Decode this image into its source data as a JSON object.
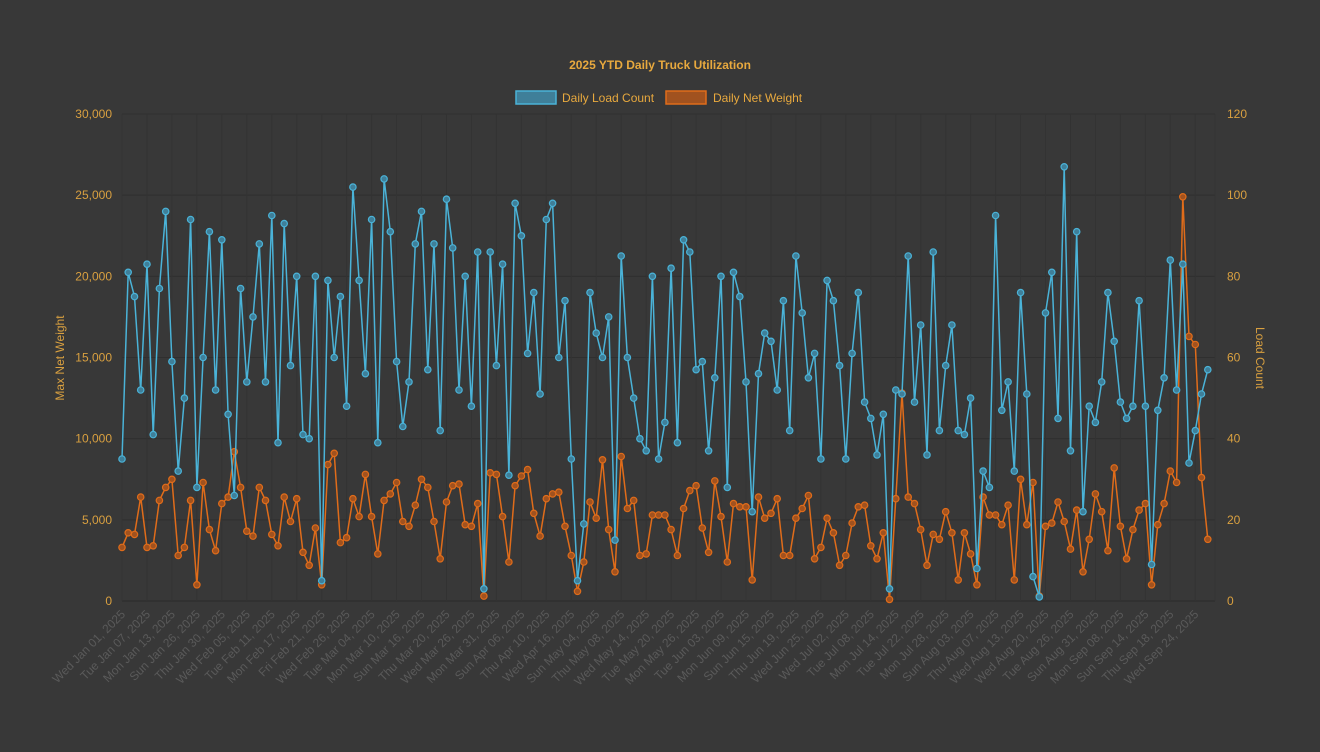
{
  "chart_data": {
    "type": "line",
    "title": "2025 YTD Daily Truck Utilization",
    "legend_position": "top",
    "grid": true,
    "y_left": {
      "label": "Max Net Weight",
      "range": [
        0,
        30000
      ],
      "ticks": [
        "0",
        "5,000",
        "10,000",
        "15,000",
        "20,000",
        "25,000",
        "30,000"
      ],
      "tick_values": [
        0,
        5000,
        10000,
        15000,
        20000,
        25000,
        30000
      ]
    },
    "y_right": {
      "label": "Load Count",
      "range": [
        0,
        120
      ],
      "ticks": [
        "0",
        "20",
        "40",
        "60",
        "80",
        "100",
        "120"
      ],
      "tick_values": [
        0,
        20,
        40,
        60,
        80,
        100,
        120
      ]
    },
    "x_tick_every": 4,
    "x_tick_labels": [
      "Wed Jan 01, 2025",
      "Tue Jan 07, 2025",
      "Mon Jan 13, 2025",
      "Sun Jan 26, 2025",
      "Thu Jan 30, 2025",
      "Wed Feb 05, 2025",
      "Tue Feb 11, 2025",
      "Mon Feb 17, 2025",
      "Fri Feb 21, 2025",
      "Wed Feb 26, 2025",
      "Tue Mar 04, 2025",
      "Mon Mar 10, 2025",
      "Sun Mar 16, 2025",
      "Thu Mar 20, 2025",
      "Wed Mar 26, 2025",
      "Mon Mar 31, 2025",
      "Sun Apr 06, 2025",
      "Thu Apr 10, 2025",
      "Wed Apr 16, 2025",
      "Sun May 04, 2025",
      "Thu May 08, 2025",
      "Wed May 14, 2025",
      "Tue May 20, 2025",
      "Mon May 26, 2025",
      "Tue Jun 03, 2025",
      "Mon Jun 09, 2025",
      "Sun Jun 15, 2025",
      "Thu Jun 19, 2025",
      "Wed Jun 25, 2025",
      "Wed Jul 02, 2025",
      "Tue Jul 08, 2025",
      "Mon Jul 14, 2025",
      "Tue Jul 22, 2025",
      "Mon Jul 28, 2025",
      "Sun Aug 03, 2025",
      "Thu Aug 07, 2025",
      "Wed Aug 13, 2025",
      "Wed Aug 20, 2025",
      "Tue Aug 26, 2025",
      "Sun Aug 31, 2025",
      "Mon Sep 08, 2025",
      "Sun Sep 14, 2025",
      "Thu Sep 18, 2025",
      "Wed Sep 24, 2025"
    ],
    "series": [
      {
        "name": "Daily Load Count",
        "axis": "right",
        "color": "#4ab3d8",
        "fill": "#3f7f99",
        "values": [
          35,
          81,
          75,
          52,
          83,
          41,
          77,
          96,
          59,
          32,
          50,
          94,
          28,
          60,
          91,
          52,
          89,
          46,
          26,
          77,
          54,
          70,
          88,
          54,
          95,
          39,
          93,
          58,
          80,
          41,
          40,
          80,
          5,
          79,
          60,
          75,
          48,
          102,
          79,
          56,
          94,
          39,
          104,
          91,
          59,
          43,
          54,
          88,
          96,
          57,
          88,
          42,
          99,
          87,
          52,
          80,
          48,
          86,
          3,
          86,
          58,
          83,
          31,
          98,
          90,
          61,
          76,
          51,
          94,
          98,
          60,
          74,
          35,
          5,
          19,
          76,
          66,
          60,
          70,
          15,
          85,
          60,
          50,
          40,
          37,
          80,
          35,
          44,
          82,
          39,
          89,
          86,
          57,
          59,
          37,
          55,
          80,
          28,
          81,
          75,
          54,
          22,
          56,
          66,
          64,
          52,
          74,
          42,
          85,
          71,
          55,
          61,
          35,
          79,
          74,
          58,
          35,
          61,
          76,
          49,
          45,
          36,
          46,
          3,
          52,
          51,
          85,
          49,
          68,
          36,
          86,
          42,
          58,
          68,
          42,
          41,
          50,
          8,
          32,
          28,
          95,
          47,
          54,
          32,
          76,
          51,
          6,
          1,
          71,
          81,
          45,
          107,
          37,
          91,
          22,
          48,
          44,
          54,
          76,
          64,
          49,
          45,
          48,
          74,
          48,
          9,
          47,
          55,
          84,
          52,
          83,
          34,
          42,
          51,
          57
        ]
      },
      {
        "name": "Daily Net Weight",
        "axis": "left",
        "color": "#e06c1a",
        "fill": "#a1521f",
        "values": [
          3300,
          4200,
          4100,
          6400,
          3300,
          3400,
          6200,
          7000,
          7500,
          2800,
          3300,
          6200,
          1000,
          7300,
          4400,
          3100,
          6000,
          6400,
          9200,
          7000,
          4300,
          4000,
          7000,
          6200,
          4100,
          3400,
          6400,
          4900,
          6300,
          3000,
          2200,
          4500,
          1000,
          8400,
          9100,
          3600,
          3900,
          6300,
          5200,
          7800,
          5200,
          2900,
          6200,
          6600,
          7300,
          4900,
          4600,
          5900,
          7500,
          7000,
          4900,
          2600,
          6100,
          7100,
          7200,
          4700,
          4600,
          6000,
          300,
          7900,
          7800,
          5200,
          2400,
          7100,
          7700,
          8100,
          5400,
          4000,
          6300,
          6600,
          6700,
          4600,
          2800,
          600,
          2400,
          6100,
          5100,
          8700,
          4400,
          1800,
          8900,
          5700,
          6200,
          2800,
          2900,
          5300,
          5300,
          5300,
          4400,
          2800,
          5700,
          6800,
          7100,
          4500,
          3000,
          7400,
          5200,
          2400,
          6000,
          5800,
          5800,
          1300,
          6400,
          5100,
          5400,
          6300,
          2800,
          2800,
          5100,
          5700,
          6500,
          2600,
          3300,
          5100,
          4200,
          2200,
          2800,
          4800,
          5800,
          5900,
          3400,
          2600,
          4200,
          100,
          6300,
          12800,
          6400,
          6000,
          4400,
          2200,
          4100,
          3800,
          5500,
          4200,
          1300,
          4200,
          2900,
          1000,
          6400,
          5300,
          5300,
          4700,
          5900,
          1300,
          7500,
          4700,
          7300,
          300,
          4600,
          4800,
          6100,
          4900,
          3200,
          5600,
          1800,
          3800,
          6600,
          5500,
          3100,
          8200,
          4600,
          2600,
          4400,
          5600,
          6000,
          1000,
          4700,
          6000,
          8000,
          7300,
          24900,
          16300,
          15800,
          7600,
          3800
        ]
      }
    ]
  }
}
